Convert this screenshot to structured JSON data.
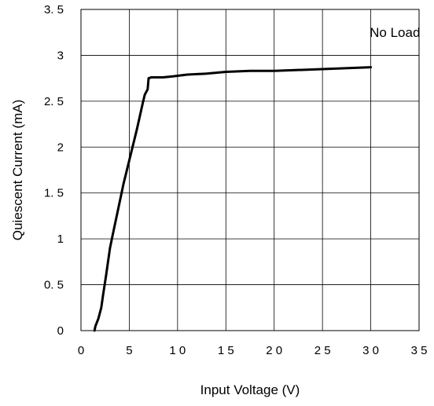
{
  "chart_data": {
    "type": "line",
    "title": "",
    "xlabel": "Input Voltage (V)",
    "ylabel": "Quiescent  Current (mA)",
    "xlim": [
      0,
      35
    ],
    "ylim": [
      0,
      3.5
    ],
    "xticks": [
      0,
      5,
      10,
      15,
      20,
      25,
      30,
      35
    ],
    "xtick_labels": [
      "0",
      "5",
      "1 0",
      "1 5",
      "2 0",
      "2 5",
      "3 0",
      "3 5"
    ],
    "yticks": [
      0,
      0.5,
      1,
      1.5,
      2,
      2.5,
      3,
      3.5
    ],
    "ytick_labels": [
      "0",
      "0. 5",
      "1",
      "1. 5",
      "2",
      "2. 5",
      "3",
      "3. 5"
    ],
    "grid": true,
    "annotations": [
      {
        "text": "No Load",
        "x": 32.5,
        "y": 3.25
      }
    ],
    "series": [
      {
        "name": "",
        "color": "#000000",
        "x": [
          1.4,
          1.5,
          1.8,
          2.1,
          2.3,
          2.6,
          3.0,
          3.3,
          3.8,
          4.4,
          5.1,
          5.8,
          6.4,
          6.6,
          6.9,
          7.0,
          7.3,
          7.8,
          8.5,
          9.5,
          11,
          13,
          15,
          17.5,
          20,
          25,
          30
        ],
        "y": [
          0,
          0.05,
          0.13,
          0.25,
          0.4,
          0.6,
          0.9,
          1.05,
          1.3,
          1.6,
          1.9,
          2.2,
          2.48,
          2.57,
          2.63,
          2.75,
          2.76,
          2.76,
          2.76,
          2.77,
          2.79,
          2.8,
          2.82,
          2.83,
          2.83,
          2.85,
          2.87
        ]
      }
    ]
  }
}
